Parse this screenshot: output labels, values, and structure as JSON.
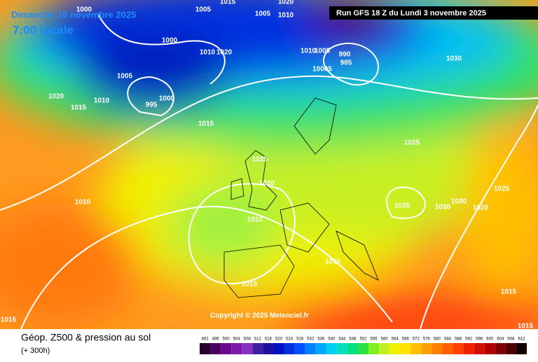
{
  "header": {
    "date": "Dimanche 16 novembre 2025",
    "time": "7:00 locale",
    "run": "Run GFS 18 Z du Lundi 3 novembre 2025"
  },
  "copyright": "Copyright © 2025 Meteociel.fr",
  "footer": {
    "title": "Géop. Z500 & pression au sol",
    "lead": "(+ 300h)"
  },
  "legend": {
    "levels": [
      492,
      496,
      500,
      504,
      508,
      512,
      516,
      520,
      524,
      528,
      532,
      536,
      540,
      544,
      548,
      552,
      556,
      560,
      564,
      568,
      572,
      576,
      580,
      584,
      588,
      592,
      596,
      600,
      604,
      608,
      612
    ],
    "colors": [
      "#2a0030",
      "#4b0060",
      "#6a0a8a",
      "#7a1aa8",
      "#8a30c0",
      "#4020a0",
      "#2010a0",
      "#0010c0",
      "#0030e0",
      "#0050ff",
      "#0080ff",
      "#00a8ff",
      "#00d0f0",
      "#00e0c0",
      "#00e080",
      "#30e040",
      "#80f020",
      "#c0f020",
      "#f0f000",
      "#ffe000",
      "#ffc000",
      "#ffa000",
      "#ff8000",
      "#ff6000",
      "#ff4000",
      "#f02000",
      "#d01000",
      "#b00000",
      "#800000",
      "#500000",
      "#100000"
    ]
  },
  "isobars": [
    "1000",
    "1005",
    "1015",
    "1005",
    "1010",
    "1020",
    "1000",
    "1010",
    "1020",
    "1010",
    "1005",
    "990",
    "985",
    "10005",
    "1030",
    "1005",
    "995",
    "1000",
    "1010",
    "1015",
    "1020",
    "1015",
    "1025",
    "1025",
    "1020",
    "1025",
    "1035",
    "1030",
    "1030",
    "1020",
    "1010",
    "1010",
    "1015",
    "1015",
    "1015",
    "1015",
    "1015"
  ]
}
